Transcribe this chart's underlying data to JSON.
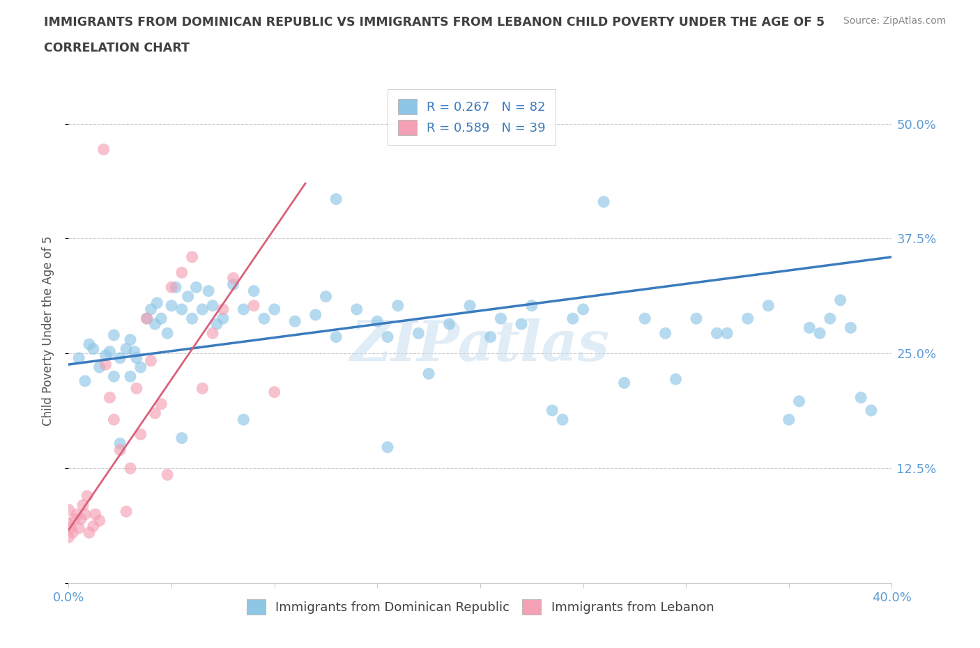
{
  "title_line1": "IMMIGRANTS FROM DOMINICAN REPUBLIC VS IMMIGRANTS FROM LEBANON CHILD POVERTY UNDER THE AGE OF 5",
  "title_line2": "CORRELATION CHART",
  "source": "Source: ZipAtlas.com",
  "ylabel": "Child Poverty Under the Age of 5",
  "xlim": [
    0,
    0.4
  ],
  "ylim": [
    0,
    0.55
  ],
  "xticks": [
    0.0,
    0.05,
    0.1,
    0.15,
    0.2,
    0.25,
    0.3,
    0.35,
    0.4
  ],
  "yticks": [
    0.0,
    0.125,
    0.25,
    0.375,
    0.5
  ],
  "ytick_labels_right": [
    "",
    "12.5%",
    "25.0%",
    "37.5%",
    "50.0%"
  ],
  "legend_r1": "R = 0.267   N = 82",
  "legend_r2": "R = 0.589   N = 39",
  "color_blue": "#8ec6e6",
  "color_pink": "#f4a0b5",
  "color_line_blue": "#3a7bbf",
  "color_line_pink": "#d9607a",
  "color_title": "#404040",
  "color_ytick_right": "#5b9bd5",
  "watermark": "ZIPatlas",
  "blue_scatter_x": [
    0.005,
    0.008,
    0.01,
    0.012,
    0.015,
    0.018,
    0.02,
    0.022,
    0.022,
    0.025,
    0.028,
    0.03,
    0.03,
    0.032,
    0.033,
    0.035,
    0.038,
    0.04,
    0.042,
    0.043,
    0.045,
    0.048,
    0.05,
    0.052,
    0.055,
    0.058,
    0.06,
    0.062,
    0.065,
    0.068,
    0.07,
    0.072,
    0.075,
    0.08,
    0.085,
    0.09,
    0.095,
    0.1,
    0.11,
    0.12,
    0.125,
    0.13,
    0.14,
    0.15,
    0.155,
    0.16,
    0.17,
    0.175,
    0.185,
    0.195,
    0.205,
    0.21,
    0.22,
    0.225,
    0.235,
    0.245,
    0.25,
    0.26,
    0.27,
    0.28,
    0.29,
    0.295,
    0.305,
    0.315,
    0.32,
    0.33,
    0.34,
    0.35,
    0.355,
    0.36,
    0.365,
    0.37,
    0.375,
    0.38,
    0.385,
    0.39,
    0.24,
    0.155,
    0.13,
    0.085,
    0.055,
    0.025
  ],
  "blue_scatter_y": [
    0.245,
    0.22,
    0.26,
    0.255,
    0.235,
    0.248,
    0.252,
    0.225,
    0.27,
    0.245,
    0.255,
    0.225,
    0.265,
    0.252,
    0.245,
    0.235,
    0.288,
    0.298,
    0.282,
    0.305,
    0.288,
    0.272,
    0.302,
    0.322,
    0.298,
    0.312,
    0.288,
    0.322,
    0.298,
    0.318,
    0.302,
    0.282,
    0.288,
    0.325,
    0.298,
    0.318,
    0.288,
    0.298,
    0.285,
    0.292,
    0.312,
    0.268,
    0.298,
    0.285,
    0.268,
    0.302,
    0.272,
    0.228,
    0.282,
    0.302,
    0.268,
    0.288,
    0.282,
    0.302,
    0.188,
    0.288,
    0.298,
    0.415,
    0.218,
    0.288,
    0.272,
    0.222,
    0.288,
    0.272,
    0.272,
    0.288,
    0.302,
    0.178,
    0.198,
    0.278,
    0.272,
    0.288,
    0.308,
    0.278,
    0.202,
    0.188,
    0.178,
    0.148,
    0.418,
    0.178,
    0.158,
    0.152
  ],
  "pink_scatter_x": [
    0.0,
    0.0,
    0.0,
    0.001,
    0.002,
    0.003,
    0.004,
    0.005,
    0.006,
    0.007,
    0.008,
    0.009,
    0.01,
    0.012,
    0.013,
    0.015,
    0.017,
    0.018,
    0.02,
    0.022,
    0.025,
    0.028,
    0.03,
    0.033,
    0.035,
    0.038,
    0.04,
    0.042,
    0.045,
    0.048,
    0.05,
    0.055,
    0.06,
    0.065,
    0.07,
    0.075,
    0.08,
    0.09,
    0.1
  ],
  "pink_scatter_y": [
    0.05,
    0.065,
    0.08,
    0.06,
    0.055,
    0.07,
    0.075,
    0.06,
    0.07,
    0.085,
    0.075,
    0.095,
    0.055,
    0.062,
    0.075,
    0.068,
    0.472,
    0.238,
    0.202,
    0.178,
    0.145,
    0.078,
    0.125,
    0.212,
    0.162,
    0.288,
    0.242,
    0.185,
    0.195,
    0.118,
    0.322,
    0.338,
    0.355,
    0.212,
    0.272,
    0.298,
    0.332,
    0.302,
    0.208
  ],
  "blue_trend_x": [
    0.0,
    0.4
  ],
  "blue_trend_y": [
    0.238,
    0.355
  ],
  "pink_trend_x": [
    0.0,
    0.115
  ],
  "pink_trend_y": [
    0.058,
    0.435
  ]
}
